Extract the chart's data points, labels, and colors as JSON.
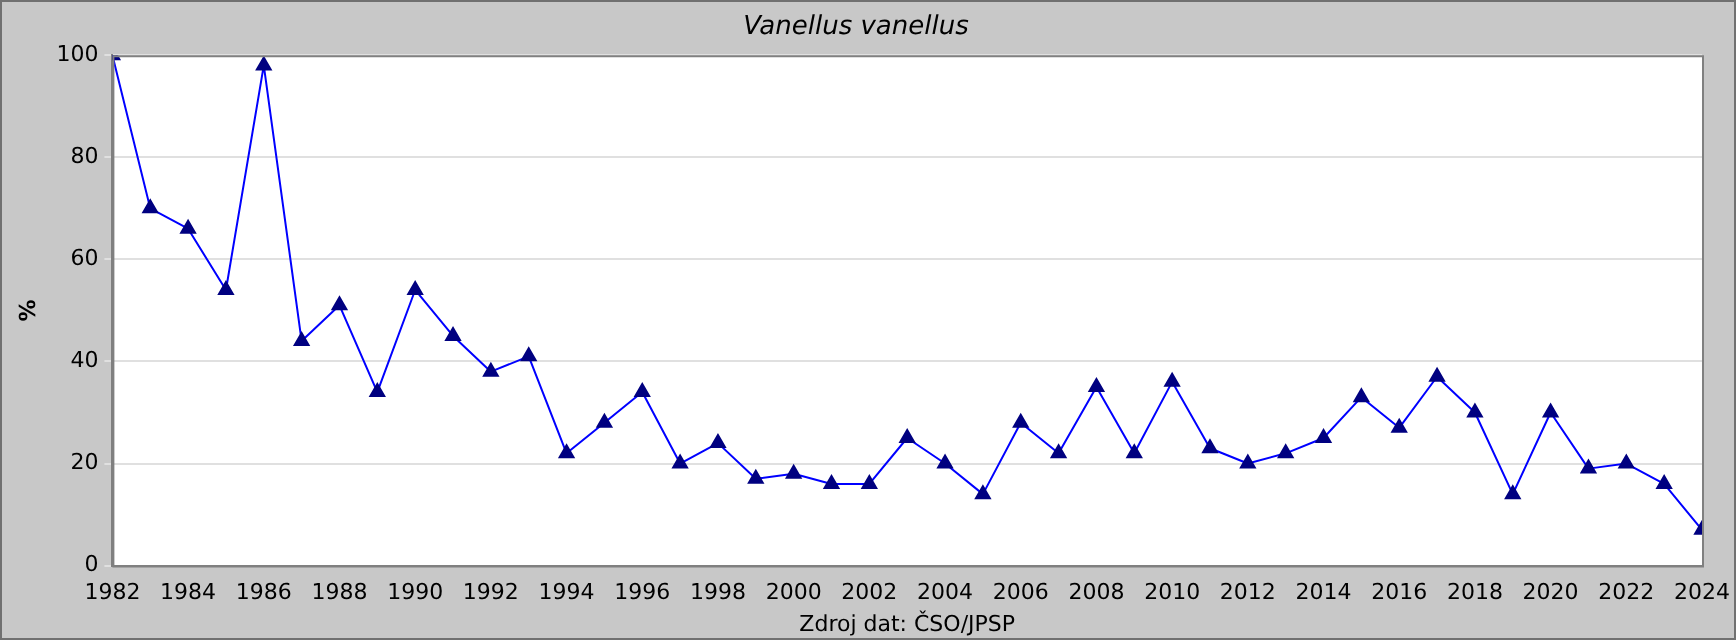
{
  "chart_data": {
    "type": "line",
    "title": "Vanellus vanellus",
    "ylabel": "%",
    "annotations": [
      "Zdroj dat: ČSO/JPSP"
    ],
    "x": [
      1982,
      1983,
      1984,
      1985,
      1986,
      1987,
      1988,
      1989,
      1990,
      1991,
      1992,
      1993,
      1994,
      1995,
      1996,
      1997,
      1998,
      1999,
      2000,
      2001,
      2002,
      2003,
      2004,
      2005,
      2006,
      2007,
      2008,
      2009,
      2010,
      2011,
      2012,
      2013,
      2014,
      2015,
      2016,
      2017,
      2018,
      2019,
      2020,
      2021,
      2022,
      2023,
      2024
    ],
    "series": [
      {
        "color": "#0000ff",
        "values": [
          100,
          70,
          66,
          54,
          98,
          44,
          51,
          34,
          54,
          45,
          38,
          41,
          22,
          28,
          34,
          20,
          24,
          17,
          18,
          16,
          16,
          25,
          20,
          14,
          28,
          22,
          35,
          22,
          36,
          23,
          20,
          22,
          25,
          33,
          27,
          37,
          30,
          14,
          30,
          19,
          20,
          16,
          7
        ]
      }
    ],
    "xlim": [
      1982,
      2024
    ],
    "xticks": [
      1982,
      1984,
      1986,
      1988,
      1990,
      1992,
      1994,
      1996,
      1998,
      2000,
      2002,
      2004,
      2006,
      2008,
      2010,
      2012,
      2014,
      2016,
      2018,
      2020,
      2022,
      2024
    ],
    "ylim": [
      0,
      100
    ],
    "yticks": [
      0,
      20,
      40,
      60,
      80,
      100
    ],
    "grid": "y",
    "marker": "triangle",
    "line_style": "solid",
    "legend": false
  }
}
